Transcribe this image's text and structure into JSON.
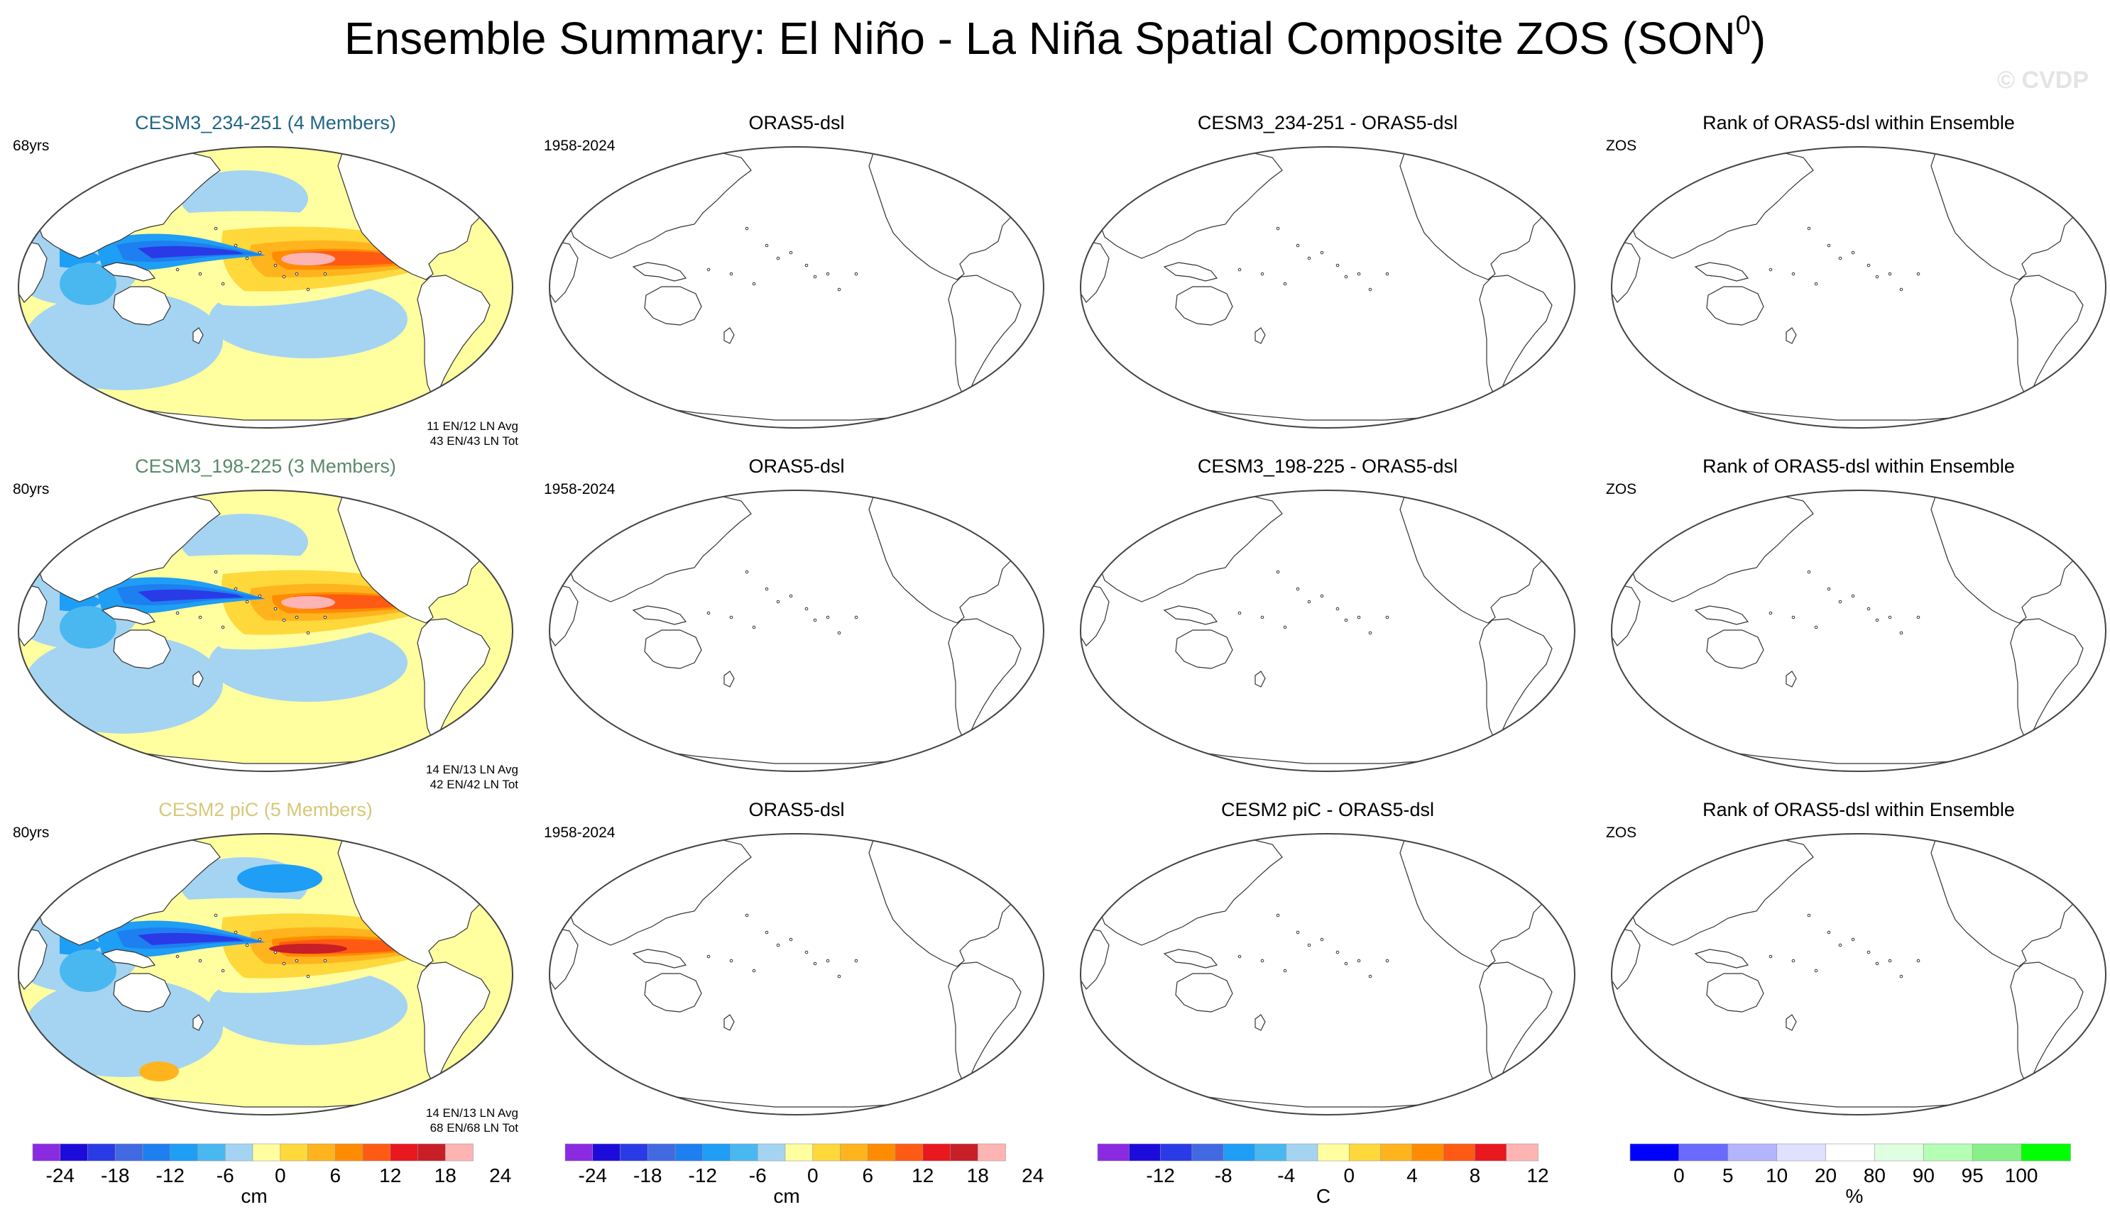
{
  "title": {
    "text": "Ensemble Summary: El Niño - La Niña Spatial Composite ZOS (SON",
    "sup": "0",
    "close": ")"
  },
  "watermark": "© CVDP",
  "colors": {
    "div15": [
      "#8a2be2",
      "#1d0bdb",
      "#2a3ae6",
      "#4169e1",
      "#1e7ff0",
      "#1e9ef5",
      "#4ab8f0",
      "#a4d4f2",
      "#ffffa0",
      "#ffd83c",
      "#ffb41e",
      "#ff8c00",
      "#ff5a14",
      "#e8181e",
      "#c81e28",
      "#ffb4b4"
    ],
    "div13": [
      "#8a2be2",
      "#1d0bdb",
      "#2a3ae6",
      "#4169e1",
      "#1e9ef5",
      "#4ab8f0",
      "#a4d4f2",
      "#ffffa0",
      "#ffd83c",
      "#ffb41e",
      "#ff8c00",
      "#ff5a14",
      "#e8181e",
      "#ffb4b4"
    ],
    "rank": [
      "#0000ff",
      "#6a6aff",
      "#b4b4ff",
      "#e0e0ff",
      "#ffffff",
      "#e0ffe0",
      "#b4ffb4",
      "#88f088",
      "#00ff00"
    ]
  },
  "rows": [
    {
      "model": {
        "title": "CESM3_234-251 (4 Members)",
        "title_color": "#226688",
        "years": "68yrs",
        "stats1": "11 EN/12 LN Avg",
        "stats2": "43 EN/43 LN Tot",
        "variant": 1
      },
      "obs": {
        "title": "ORAS5-dsl",
        "years": "1958-2024"
      },
      "diff": {
        "title": "CESM3_234-251 - ORAS5-dsl"
      },
      "rank": {
        "title": "Rank of ORAS5-dsl within Ensemble",
        "label": "ZOS"
      }
    },
    {
      "model": {
        "title": "CESM3_198-225 (3 Members)",
        "title_color": "#5a8a6a",
        "years": "80yrs",
        "stats1": "14 EN/13 LN Avg",
        "stats2": "42 EN/42 LN Tot",
        "variant": 2
      },
      "obs": {
        "title": "ORAS5-dsl",
        "years": "1958-2024"
      },
      "diff": {
        "title": "CESM3_198-225 - ORAS5-dsl"
      },
      "rank": {
        "title": "Rank of ORAS5-dsl within Ensemble",
        "label": "ZOS"
      }
    },
    {
      "model": {
        "title": "CESM2 piC (5 Members)",
        "title_color": "#d6c87a",
        "years": "80yrs",
        "stats1": "14 EN/13 LN Avg",
        "stats2": "68 EN/68 LN Tot",
        "variant": 3
      },
      "obs": {
        "title": "ORAS5-dsl",
        "years": "1958-2024"
      },
      "diff": {
        "title": "CESM2 piC - ORAS5-dsl"
      },
      "rank": {
        "title": "Rank of ORAS5-dsl within Ensemble",
        "label": "ZOS"
      }
    }
  ],
  "chart_data": {
    "type": "heatmap",
    "title": "Ensemble Summary: El Niño - La Niña Spatial Composite ZOS (SON0)",
    "colorbars": [
      {
        "name": "model",
        "levels": [
          -24,
          -21,
          -18,
          -15,
          -12,
          -9,
          -6,
          -3,
          0,
          3,
          6,
          9,
          12,
          15,
          18,
          21,
          24
        ],
        "labels": [
          "-24",
          "-18",
          "-12",
          "-6",
          "0",
          "6",
          "12",
          "18",
          "24"
        ],
        "unit": "cm",
        "colors": "div15"
      },
      {
        "name": "obs",
        "levels": [
          -24,
          -21,
          -18,
          -15,
          -12,
          -9,
          -6,
          -3,
          0,
          3,
          6,
          9,
          12,
          15,
          18,
          21,
          24
        ],
        "labels": [
          "-24",
          "-18",
          "-12",
          "-6",
          "0",
          "6",
          "12",
          "18",
          "24"
        ],
        "unit": "cm",
        "colors": "div15"
      },
      {
        "name": "diff",
        "levels": [
          -14,
          -12,
          -10,
          -8,
          -6,
          -4,
          -2,
          0,
          2,
          4,
          6,
          8,
          10,
          12,
          14
        ],
        "labels": [
          "-12",
          "-8",
          "-4",
          "0",
          "4",
          "8",
          "12"
        ],
        "unit": "C",
        "colors": "div13"
      },
      {
        "name": "rank",
        "levels": [
          0,
          5,
          10,
          20,
          80,
          90,
          95,
          100
        ],
        "labels": [
          "0",
          "5",
          "10",
          "20",
          "80",
          "90",
          "95",
          "100"
        ],
        "unit": "%",
        "colors": "rank"
      }
    ]
  }
}
